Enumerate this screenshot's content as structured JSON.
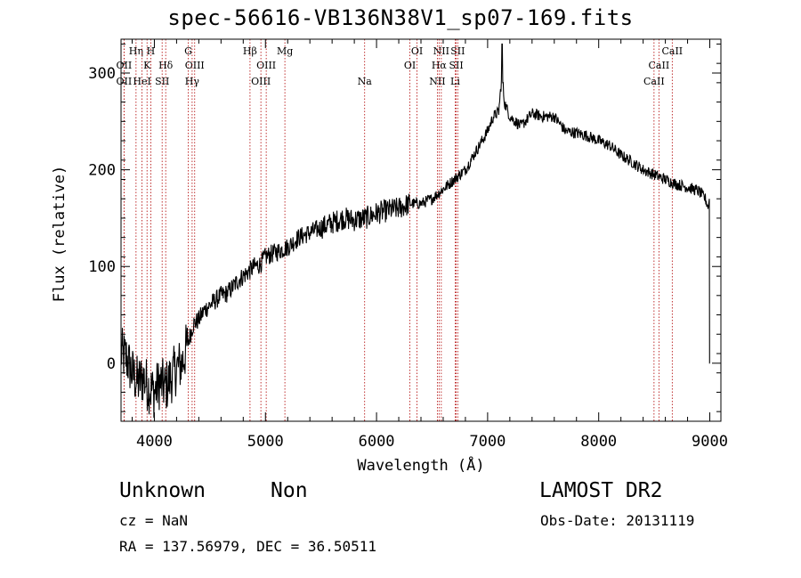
{
  "header": {
    "title": "spec-56616-VB136N38V1_sp07-169.fits"
  },
  "classification": {
    "object_class": "Unknown",
    "subclass": "Non",
    "survey": "LAMOST DR2"
  },
  "info": {
    "cz_text": "cz = NaN",
    "obs_date_text": "Obs-Date: 20131119",
    "radec_text": "RA = 137.56979, DEC =  36.50511"
  },
  "chart_data": {
    "type": "line",
    "xlabel": "Wavelength (Å)",
    "ylabel": "Flux (relative)",
    "xlim": [
      3700,
      9100
    ],
    "ylim": [
      -60,
      335
    ],
    "xticks": [
      4000,
      5000,
      6000,
      7000,
      8000,
      9000
    ],
    "yticks": [
      0,
      100,
      200,
      300
    ],
    "grid": false,
    "colors": {
      "spectrum": "#000000",
      "lines": "#b00000"
    },
    "series": [
      {
        "x": [
          3700,
          3750,
          3800,
          3850,
          3900,
          3950,
          4000,
          4050,
          4100,
          4150,
          4200,
          4250,
          4300,
          4350,
          4400,
          4450,
          4500,
          4550,
          4600,
          4650,
          4700,
          4750,
          4800,
          4850,
          4900,
          4950,
          5000,
          5100,
          5200,
          5300,
          5400,
          5500,
          5600,
          5700,
          5800,
          5900,
          6000,
          6100,
          6200,
          6300,
          6400,
          6500,
          6600,
          6700,
          6800,
          6900,
          7000,
          7050,
          7100,
          7130,
          7150,
          7200,
          7300,
          7400,
          7500,
          7600,
          7700,
          7800,
          7900,
          8000,
          8100,
          8200,
          8300,
          8400,
          8500,
          8600,
          8700,
          8800,
          8900,
          8960,
          8990,
          9000
        ],
        "y": [
          10,
          5,
          -10,
          -20,
          -15,
          -25,
          -30,
          -20,
          -25,
          -15,
          -5,
          0,
          20,
          40,
          45,
          55,
          60,
          65,
          70,
          72,
          78,
          85,
          90,
          95,
          100,
          102,
          110,
          115,
          120,
          130,
          135,
          140,
          145,
          150,
          148,
          150,
          155,
          158,
          160,
          165,
          165,
          170,
          180,
          190,
          200,
          220,
          240,
          255,
          260,
          300,
          270,
          255,
          245,
          258,
          255,
          255,
          240,
          238,
          235,
          230,
          225,
          215,
          208,
          200,
          195,
          190,
          185,
          182,
          178,
          170,
          160,
          0
        ]
      }
    ],
    "spectral_lines": [
      {
        "label": "Hη",
        "row": 1,
        "x": 3835
      },
      {
        "label": "H",
        "row": 1,
        "x": 3968
      },
      {
        "label": "K",
        "row": 2,
        "x": 3934
      },
      {
        "label": "Hδ",
        "row": 2,
        "x": 4102
      },
      {
        "label": "G",
        "row": 1,
        "x": 4305
      },
      {
        "label": "OII",
        "row": 2,
        "x": 3727
      },
      {
        "label": "OIII",
        "row": 2,
        "x": 4363
      },
      {
        "label": "OII",
        "row": 3,
        "x": 3727
      },
      {
        "label": "HeI",
        "row": 3,
        "x": 3889
      },
      {
        "label": "SII",
        "row": 3,
        "x": 4070
      },
      {
        "label": "Hγ",
        "row": 3,
        "x": 4340
      },
      {
        "label": "Hβ",
        "row": 1,
        "x": 4861
      },
      {
        "label": "Mg",
        "row": 1,
        "x": 5175
      },
      {
        "label": "OIII",
        "row": 2,
        "x": 5007
      },
      {
        "label": "OIII",
        "row": 3,
        "x": 4959
      },
      {
        "label": "Na",
        "row": 3,
        "x": 5893
      },
      {
        "label": "OI",
        "row": 1,
        "x": 6364
      },
      {
        "label": "OI",
        "row": 2,
        "x": 6300
      },
      {
        "label": "NII",
        "row": 1,
        "x": 6583
      },
      {
        "label": "SII",
        "row": 1,
        "x": 6731
      },
      {
        "label": "Hα",
        "row": 2,
        "x": 6563
      },
      {
        "label": "SII",
        "row": 2,
        "x": 6717
      },
      {
        "label": "NII",
        "row": 3,
        "x": 6548
      },
      {
        "label": "Li",
        "row": 3,
        "x": 6708
      },
      {
        "label": "CaII",
        "row": 1,
        "x": 8662
      },
      {
        "label": "CaII",
        "row": 2,
        "x": 8542
      },
      {
        "label": "CaII",
        "row": 3,
        "x": 8498
      }
    ]
  }
}
